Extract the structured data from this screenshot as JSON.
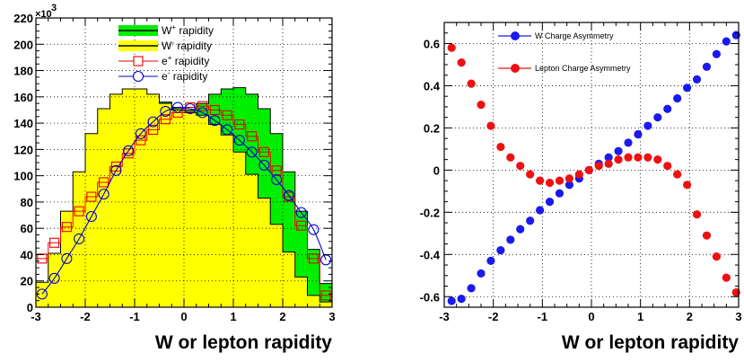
{
  "chart_data": [
    {
      "type": "area",
      "xlabel": "W or lepton rapidity",
      "ylabel": "",
      "xlim": [
        -3,
        3
      ],
      "ylim": [
        0,
        220
      ],
      "y_multiplier_label": "×10",
      "y_multiplier_exponent": "3",
      "xticks": [
        "-3",
        "-2",
        "-1",
        "0",
        "1",
        "2",
        "3"
      ],
      "yticks": [
        "0",
        "20",
        "40",
        "60",
        "80",
        "100",
        "120",
        "140",
        "160",
        "180",
        "200",
        "220"
      ],
      "bin_edges": [
        -3.0,
        -2.75,
        -2.5,
        -2.25,
        -2.0,
        -1.75,
        -1.5,
        -1.25,
        -1.0,
        -0.75,
        -0.5,
        -0.25,
        0.0,
        0.25,
        0.5,
        0.75,
        1.0,
        1.25,
        1.5,
        1.75,
        2.0,
        2.25,
        2.5,
        2.75,
        3.0
      ],
      "grid": true,
      "legend_position": "top-center",
      "series": [
        {
          "name": "W⁺ rapidity",
          "legend_base": "W",
          "legend_sup": "+",
          "legend_rest": " rapidity",
          "style": "filled-hist",
          "color": "#00ee00",
          "values": [
            8,
            18,
            42,
            72,
            97,
            122,
            141,
            153,
            158,
            159,
            156,
            152,
            150,
            155,
            162,
            166,
            167,
            162,
            151,
            132,
            103,
            73,
            44,
            18
          ]
        },
        {
          "name": "W⁻ rapidity",
          "legend_base": "W",
          "legend_sup": "-",
          "legend_rest": " rapidity",
          "style": "filled-hist",
          "color": "#ffff00",
          "values": [
            19,
            41,
            73,
            103,
            132,
            151,
            162,
            166,
            166,
            162,
            155,
            150,
            148,
            146,
            139,
            131,
            118,
            101,
            83,
            63,
            42,
            23,
            9,
            4
          ]
        },
        {
          "name": "e⁺ rapidity",
          "legend_base": "e",
          "legend_sup": "+",
          "legend_rest": " rapidity",
          "style": "square-markers",
          "color": "#ee0000",
          "values": [
            37,
            49,
            61,
            73,
            84,
            95,
            107,
            117,
            127,
            135,
            143,
            148,
            152,
            153,
            150,
            146,
            139,
            130,
            118,
            104,
            84,
            62,
            37,
            9
          ]
        },
        {
          "name": "e⁻ rapidity",
          "legend_base": "e",
          "legend_sup": "-",
          "legend_rest": " rapidity",
          "style": "circle-markers",
          "color": "#0000cc",
          "values": [
            10,
            22,
            37,
            52,
            69,
            86,
            104,
            119,
            132,
            141,
            149,
            152,
            151,
            148,
            142,
            135,
            127,
            118,
            108,
            97,
            85,
            72,
            59,
            36
          ]
        }
      ]
    },
    {
      "type": "scatter",
      "xlabel": "W or lepton rapidity",
      "ylabel": "",
      "xlim": [
        -3,
        3
      ],
      "ylim": [
        -0.65,
        0.7
      ],
      "xticks": [
        "-3",
        "-2",
        "-1",
        "0",
        "1",
        "2",
        "3"
      ],
      "yticks": [
        "-0.6",
        "-0.4",
        "-0.2",
        "0",
        "0.2",
        "0.4",
        "0.6"
      ],
      "grid": true,
      "legend_position": "top-left",
      "x": [
        -2.85,
        -2.65,
        -2.45,
        -2.25,
        -2.05,
        -1.85,
        -1.65,
        -1.45,
        -1.25,
        -1.05,
        -0.85,
        -0.65,
        -0.45,
        -0.25,
        -0.05,
        0.15,
        0.35,
        0.55,
        0.75,
        0.95,
        1.15,
        1.35,
        1.55,
        1.75,
        1.95,
        2.15,
        2.35,
        2.55,
        2.75,
        2.95
      ],
      "series": [
        {
          "name": "W Charge Asymmetry",
          "color": "#1a1aee",
          "values": [
            -0.62,
            -0.61,
            -0.56,
            -0.49,
            -0.43,
            -0.38,
            -0.33,
            -0.28,
            -0.24,
            -0.19,
            -0.15,
            -0.11,
            -0.07,
            -0.04,
            0.0,
            0.03,
            0.06,
            0.09,
            0.13,
            0.17,
            0.21,
            0.25,
            0.29,
            0.34,
            0.39,
            0.43,
            0.49,
            0.55,
            0.61,
            0.64
          ]
        },
        {
          "name": "Lepton Charge Asymmetry",
          "color": "#ee1111",
          "values": [
            0.58,
            0.51,
            0.41,
            0.31,
            0.21,
            0.11,
            0.06,
            0.02,
            -0.02,
            -0.05,
            -0.06,
            -0.05,
            -0.04,
            -0.02,
            0.0,
            0.02,
            0.03,
            0.05,
            0.06,
            0.06,
            0.06,
            0.05,
            0.02,
            -0.02,
            -0.07,
            -0.21,
            -0.31,
            -0.41,
            -0.51,
            -0.58
          ]
        }
      ]
    }
  ]
}
